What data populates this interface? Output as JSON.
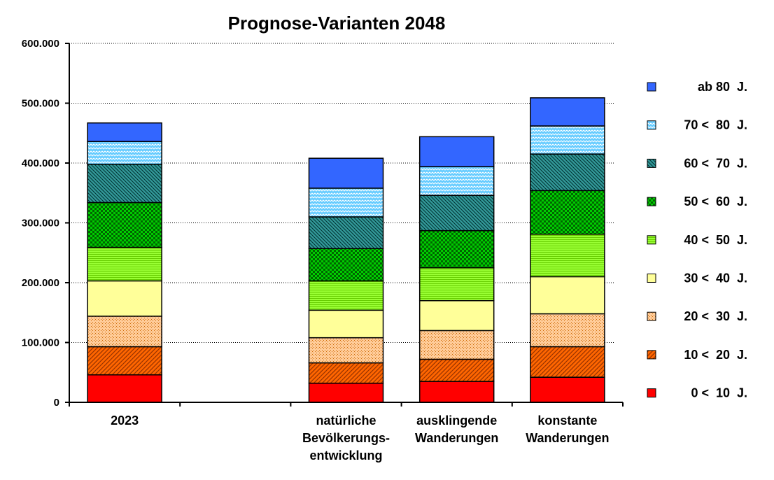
{
  "chart_data": {
    "type": "bar",
    "stacked": true,
    "title": "Prognose-Varianten 2048",
    "ylim": [
      0,
      600000
    ],
    "yticks": [
      "0",
      "100.000",
      "200.000",
      "300.000",
      "400.000",
      "500.000",
      "600.000"
    ],
    "ytick_values": [
      0,
      100000,
      200000,
      300000,
      400000,
      500000,
      600000
    ],
    "grid": true,
    "legend_position": "right",
    "slots": 5,
    "categories": [
      {
        "slot": 0,
        "lines": [
          "2023"
        ]
      },
      {
        "slot": 2,
        "lines": [
          "natürliche",
          "Bevölkerungs-",
          "entwicklung"
        ]
      },
      {
        "slot": 3,
        "lines": [
          "ausklingende",
          "Wanderungen"
        ]
      },
      {
        "slot": 4,
        "lines": [
          "konstante",
          "Wanderungen"
        ]
      }
    ],
    "series": [
      {
        "name": "0 <  10  J.",
        "color": "#ff0000",
        "pattern": "solid",
        "values": [
          46000,
          32000,
          35000,
          42000
        ]
      },
      {
        "name": "10 <  20  J.",
        "color": "#ff6600",
        "pattern": "diagonal",
        "values": [
          47000,
          34000,
          37000,
          51000
        ]
      },
      {
        "name": "20 <  30  J.",
        "color": "#ffcc99",
        "pattern": "dots",
        "values": [
          51000,
          42000,
          48000,
          55000
        ]
      },
      {
        "name": "30 <  40  J.",
        "color": "#ffff99",
        "pattern": "solid",
        "values": [
          59000,
          46000,
          50000,
          62000
        ]
      },
      {
        "name": "40 <  50  J.",
        "color": "#99ff33",
        "pattern": "horizontal",
        "values": [
          56000,
          49000,
          55000,
          71000
        ]
      },
      {
        "name": "50 <  60  J.",
        "color": "#00cc00",
        "pattern": "checker",
        "values": [
          75000,
          54000,
          62000,
          73000
        ]
      },
      {
        "name": "60 <  70  J.",
        "color": "#339999",
        "pattern": "diagonal-dark",
        "values": [
          64000,
          53000,
          59000,
          61000
        ]
      },
      {
        "name": "70 <  80  J.",
        "color": "#66ccff",
        "pattern": "wave",
        "values": [
          38000,
          48000,
          48000,
          47000
        ]
      },
      {
        "name": "ab 80  J.",
        "color": "#3366ff",
        "pattern": "solid",
        "values": [
          31000,
          50000,
          50000,
          47000
        ]
      }
    ]
  }
}
